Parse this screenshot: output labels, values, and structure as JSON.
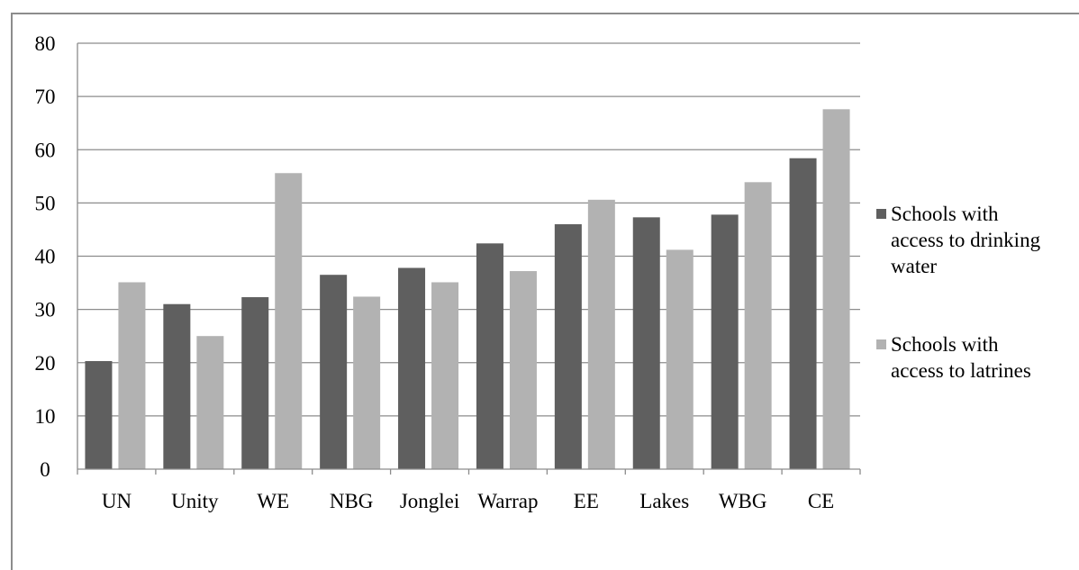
{
  "chart_data": {
    "type": "bar",
    "categories": [
      "UN",
      "Unity",
      "WE",
      "NBG",
      "Jonglei",
      "Warrap",
      "EE",
      "Lakes",
      "WBG",
      "CE"
    ],
    "series": [
      {
        "name": "Schools with access to drinking water",
        "legend_lines": [
          "Schools with",
          "access to drinking",
          "water"
        ],
        "color": "#5f5f5f",
        "values": [
          20.3,
          31.0,
          32.3,
          36.5,
          37.8,
          42.4,
          46.0,
          47.3,
          47.8,
          58.4
        ]
      },
      {
        "name": "Schools with access to latrines",
        "legend_lines": [
          "Schools with",
          "access to latrines"
        ],
        "color": "#b2b2b2",
        "values": [
          35.1,
          25.0,
          55.6,
          32.4,
          35.1,
          37.2,
          50.6,
          41.2,
          53.9,
          67.6
        ]
      }
    ],
    "ylim": [
      0,
      80
    ],
    "yticks": [
      "0",
      "10",
      "20",
      "30",
      "40",
      "50",
      "60",
      "70",
      "80"
    ],
    "grid": true,
    "legend_position": "right",
    "title": "",
    "xlabel": "",
    "ylabel": ""
  }
}
